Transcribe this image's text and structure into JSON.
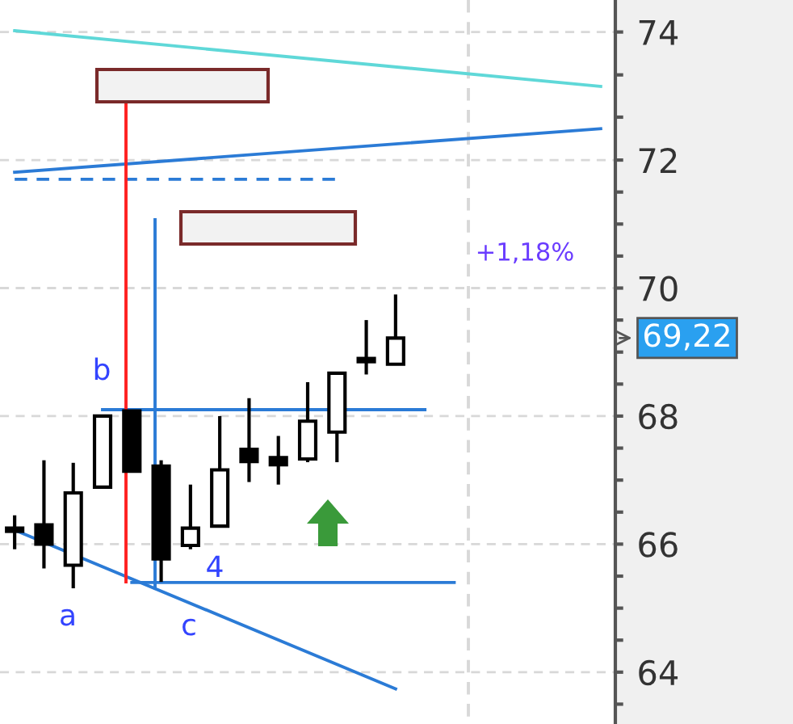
{
  "chart_data": {
    "type": "candlestick",
    "categories": [
      null,
      null,
      null,
      null,
      null,
      null,
      null,
      null,
      null,
      null,
      null,
      null,
      null,
      null,
      null,
      null,
      null,
      null,
      null,
      null,
      null
    ],
    "ohlc": [
      [
        66.25,
        66.45,
        65.92,
        66.2
      ],
      [
        66.3,
        67.31,
        65.62,
        66.0
      ],
      [
        65.67,
        67.27,
        65.31,
        66.8
      ],
      [
        66.89,
        68.0,
        66.89,
        68.0
      ],
      [
        68.08,
        68.08,
        67.14,
        67.14
      ],
      [
        67.22,
        67.31,
        65.41,
        65.77
      ],
      [
        65.98,
        66.93,
        65.92,
        66.25
      ],
      [
        66.28,
        68.0,
        66.28,
        67.16
      ],
      [
        67.48,
        68.28,
        66.97,
        67.29
      ],
      [
        67.35,
        67.69,
        66.93,
        67.24
      ],
      [
        67.33,
        68.53,
        67.28,
        67.92
      ],
      [
        67.75,
        68.67,
        67.28,
        68.67
      ],
      [
        68.9,
        69.5,
        68.65,
        68.85
      ],
      [
        68.81,
        69.9,
        68.81,
        69.22
      ],
      null,
      null,
      null,
      null,
      null,
      null,
      null
    ],
    "series": [
      {
        "type": "line",
        "values": [
          74.02,
          null,
          null,
          null,
          null,
          null,
          null,
          null,
          null,
          null,
          null,
          null,
          null,
          null,
          null,
          null,
          null,
          null,
          null,
          null,
          73.15
        ],
        "color": "#5fd8d8",
        "line_style": "solid"
      },
      {
        "type": "line",
        "values": [
          71.81,
          null,
          null,
          null,
          null,
          null,
          null,
          null,
          null,
          null,
          null,
          null,
          null,
          null,
          null,
          null,
          null,
          null,
          null,
          null,
          72.49
        ],
        "color": "#2b7bd6",
        "line_style": "solid"
      },
      {
        "type": "line",
        "values": [
          71.7,
          null,
          null,
          null,
          null,
          null,
          null,
          null,
          null,
          null,
          null,
          71.7,
          null,
          null,
          null,
          null,
          null,
          null,
          null,
          null,
          null
        ],
        "color": "#2b7bd6",
        "line_style": "dashed"
      },
      {
        "type": "line",
        "values": [
          null,
          null,
          null,
          68.1,
          null,
          null,
          null,
          null,
          null,
          null,
          null,
          null,
          null,
          null,
          68.1,
          null,
          null,
          null,
          null,
          null,
          null
        ],
        "color": "#2b7bd6",
        "line_style": "solid"
      },
      {
        "type": "line",
        "values": [
          null,
          null,
          null,
          null,
          65.4,
          null,
          null,
          null,
          null,
          null,
          null,
          null,
          null,
          null,
          null,
          65.4,
          null,
          null,
          null,
          null,
          null
        ],
        "color": "#2b7bd6",
        "line_style": "solid"
      },
      {
        "type": "line",
        "values": [
          66.22,
          null,
          null,
          null,
          null,
          null,
          null,
          null,
          null,
          null,
          null,
          null,
          null,
          63.74,
          null,
          null,
          null,
          null,
          null,
          null,
          null
        ],
        "color": "#2b7bd6",
        "line_style": "solid"
      }
    ],
    "ylim": [
      63.19,
      74.5
    ],
    "yticks": [
      74,
      {
        "value": 73.33,
        "label": null
      },
      {
        "value": 72.67,
        "label": null
      },
      72,
      {
        "value": 71.5,
        "label": null
      },
      {
        "value": 71,
        "label": null
      },
      {
        "value": 70.5,
        "label": null
      },
      70,
      {
        "value": 69.5,
        "label": null
      },
      {
        "value": 69,
        "label": null
      },
      {
        "value": 68.5,
        "label": null
      },
      68,
      {
        "value": 67.5,
        "label": null
      },
      {
        "value": 67,
        "label": null
      },
      {
        "value": 66.5,
        "label": null
      },
      66,
      {
        "value": 65.5,
        "label": null
      },
      {
        "value": 65,
        "label": null
      },
      {
        "value": 64.5,
        "label": null
      },
      64,
      {
        "value": 63.5,
        "label": null
      }
    ],
    "tick_labels": "y",
    "grid": "y",
    "annotations": [
      "a",
      "b",
      "c",
      "4",
      "+1,18%",
      "69,22"
    ]
  }
}
